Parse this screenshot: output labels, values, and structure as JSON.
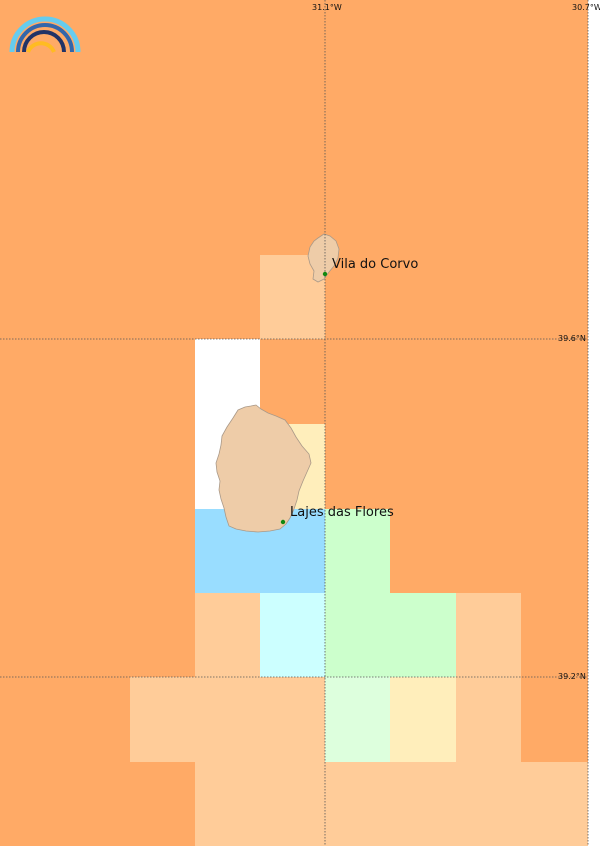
{
  "map": {
    "colors": {
      "orange": "#ffaa66",
      "peach": "#ffcc99",
      "cream": "#ffeebb",
      "white": "#ffffff",
      "blue": "#99ddff",
      "cyan": "#ccffff",
      "green": "#ccffcc",
      "lightgreen": "#ddffdd",
      "island": "#eecca8",
      "island_outline": "#aa9988",
      "grid_line": "#555555",
      "town_dot": "#118811"
    },
    "graticule": {
      "longitudes": [
        "31.1°W",
        "30.7°W"
      ],
      "latitudes": [
        "39.6°N",
        "39.2°N"
      ]
    },
    "places": [
      {
        "name": "Vila do Corvo"
      },
      {
        "name": "Lajes das Flores"
      }
    ],
    "islands": [
      "corvo-island",
      "flores-island"
    ],
    "logo_icon": "rainbow-logo-icon"
  }
}
